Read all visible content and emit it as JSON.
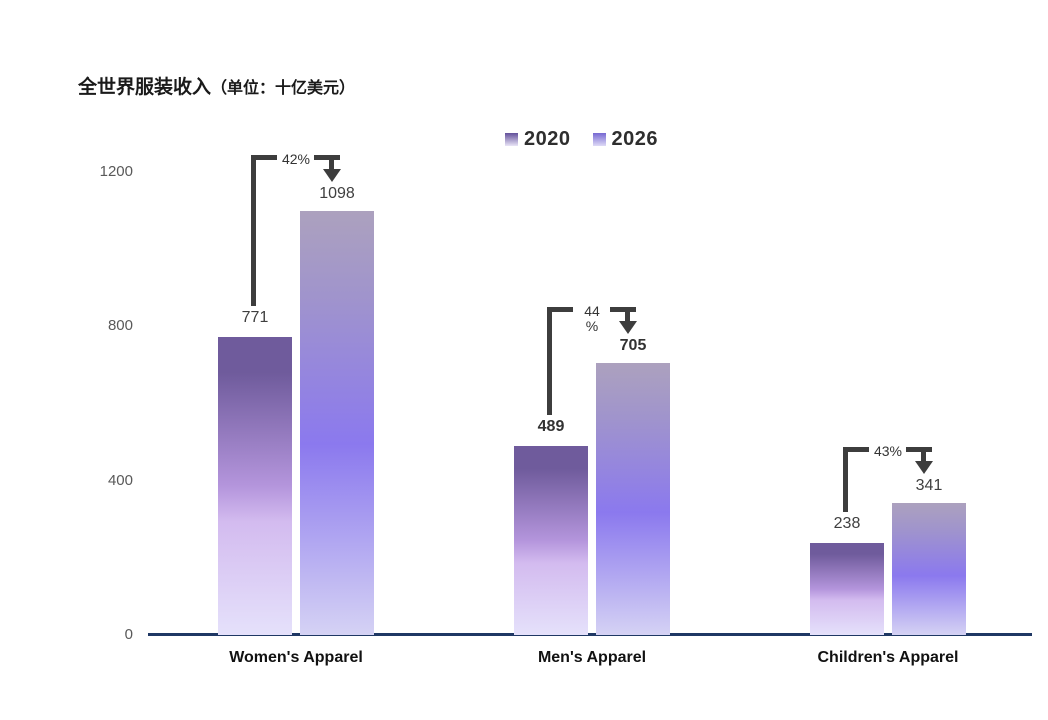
{
  "title": {
    "main": "全世界服装收入",
    "unit": "（单位：十亿美元）"
  },
  "chart_data": {
    "type": "bar",
    "title": "全世界服装收入（单位：十亿美元）",
    "categories": [
      "Women's Apparel",
      "Men's Apparel",
      "Children's Apparel"
    ],
    "series": [
      {
        "name": "2020",
        "values": [
          771,
          489,
          238
        ]
      },
      {
        "name": "2026",
        "values": [
          1098,
          705,
          341
        ]
      }
    ],
    "growth_labels": [
      "42%",
      "44\n%",
      "43%"
    ],
    "value_label_bold": [
      false,
      true,
      false
    ],
    "yticks": [
      0,
      400,
      800,
      1200
    ],
    "ylim": [
      0,
      1200
    ],
    "grid": false,
    "legend_position": "top-center",
    "colors": {
      "axis_line": "#1f3864",
      "tick_text": "#595959",
      "annotation": "#3d3d3d",
      "bar_2020_gradient": [
        "#6F5B9C 0%",
        "#6F5B9C 12%",
        "#B495DC 50%",
        "#D3BBEF 62%",
        "#E5E1FB 100%"
      ],
      "bar_2026_gradient": [
        "#ACA1BE 0%",
        "#A094CC 20%",
        "#8B79EE 55%",
        "#D5D2F4 100%"
      ],
      "legend_swatch_2020": [
        "#63509A",
        "#E9E5F7"
      ],
      "legend_swatch_2026": [
        "#7668D2",
        "#DEDAF6"
      ]
    }
  }
}
